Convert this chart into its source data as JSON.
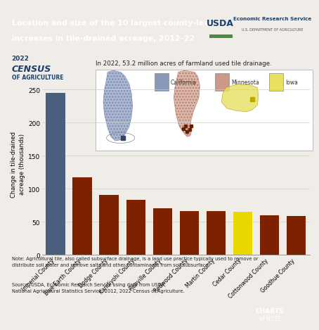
{
  "title_line1": "Location and size of the 10 largest county-level",
  "title_line2": "increases in tile-drained acreage, 2012–22",
  "title_bg_color": "#1b3f6b",
  "title_text_color": "#ffffff",
  "ylabel": "Change in tile-drained\nacreage (thousands)",
  "categories": [
    "Imperial County",
    "Blue Earth County",
    "Dodge County",
    "Kandiyohi County",
    "Renville County",
    "Redwood County",
    "Martin County",
    "Cedar County",
    "Cottonwood County",
    "Goodhue County"
  ],
  "values": [
    245,
    117,
    91,
    83,
    70,
    66,
    66,
    65,
    60,
    59
  ],
  "bar_colors": [
    "#4a5f7e",
    "#7d2200",
    "#7d2200",
    "#7d2200",
    "#7d2200",
    "#7d2200",
    "#7d2200",
    "#e8d800",
    "#7d2200",
    "#7d2200"
  ],
  "ylim": [
    0,
    275
  ],
  "yticks": [
    0,
    50,
    100,
    150,
    200,
    250
  ],
  "note_text": "Note: Agricultural tile, also called subsurface drainage, is a land use practice typically used to remove or\ndistribute soil water and remove salts and other contaminants from soil subsurface.",
  "source_text": "Source: USDA, Economic Research Service using data from USDA,\nNational Agricultural Statistics Service, 2012, 2022 Census of Agriculture.",
  "inset_text": "In 2022, 53.2 million acres of farmland used tile drainage.",
  "bg_color": "#f0ede8",
  "plot_bg_color": "#f0ede8",
  "ca_color": "#8899bb",
  "mn_color": "#cc9988",
  "ia_color": "#e8e060",
  "ca_county_color": "#334466",
  "mn_county_color": "#662200",
  "ia_county_color": "#b8a800"
}
